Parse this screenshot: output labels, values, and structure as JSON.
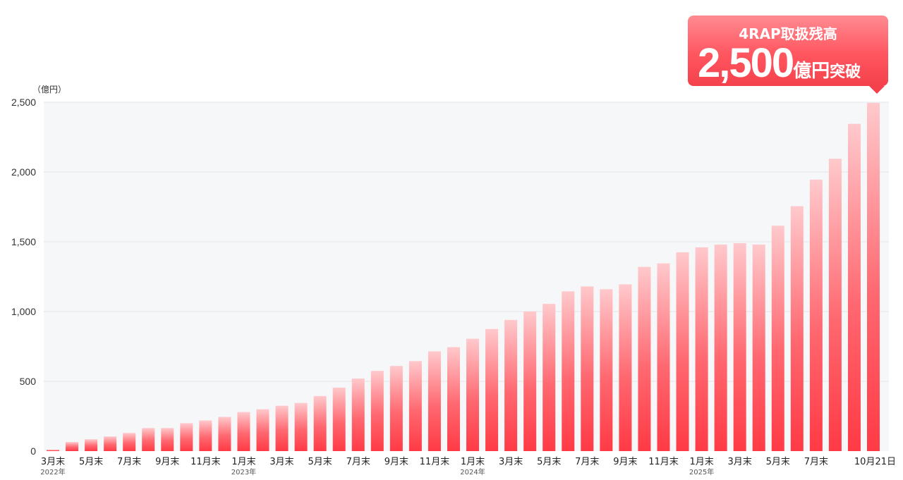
{
  "chart_data": {
    "type": "bar",
    "unit_label": "（億円）",
    "ylim": [
      0,
      2500
    ],
    "yticks": [
      0,
      500,
      1000,
      1500,
      2000,
      2500
    ],
    "ytick_labels": [
      "0",
      "500",
      "1,000",
      "1,500",
      "2,000",
      "2,500"
    ],
    "grid": true,
    "months": [
      "2022-03",
      "2022-04",
      "2022-05",
      "2022-06",
      "2022-07",
      "2022-08",
      "2022-09",
      "2022-10",
      "2022-11",
      "2022-12",
      "2023-01",
      "2023-02",
      "2023-03",
      "2023-04",
      "2023-05",
      "2023-06",
      "2023-07",
      "2023-08",
      "2023-09",
      "2023-10",
      "2023-11",
      "2023-12",
      "2024-01",
      "2024-02",
      "2024-03",
      "2024-04",
      "2024-05",
      "2024-06",
      "2024-07",
      "2024-08",
      "2024-09",
      "2024-10",
      "2024-11",
      "2024-12",
      "2025-01",
      "2025-02",
      "2025-03",
      "2025-04",
      "2025-05",
      "2025-06",
      "2025-07",
      "2025-08",
      "2025-09",
      "2025-10-21"
    ],
    "values": [
      10,
      65,
      85,
      105,
      130,
      165,
      165,
      200,
      220,
      245,
      280,
      300,
      325,
      345,
      395,
      455,
      520,
      575,
      610,
      645,
      715,
      745,
      805,
      875,
      940,
      1000,
      1055,
      1145,
      1180,
      1160,
      1195,
      1320,
      1345,
      1425,
      1460,
      1480,
      1490,
      1480,
      1615,
      1755,
      1945,
      2095,
      2345,
      2495
    ],
    "x_tick_labels": [
      {
        "index": 0,
        "label": "3月末",
        "year": "2022年"
      },
      {
        "index": 2,
        "label": "5月末"
      },
      {
        "index": 4,
        "label": "7月末"
      },
      {
        "index": 6,
        "label": "9月末"
      },
      {
        "index": 8,
        "label": "11月末"
      },
      {
        "index": 10,
        "label": "1月末",
        "year": "2023年"
      },
      {
        "index": 12,
        "label": "3月末"
      },
      {
        "index": 14,
        "label": "5月末"
      },
      {
        "index": 16,
        "label": "7月末"
      },
      {
        "index": 18,
        "label": "9月末"
      },
      {
        "index": 20,
        "label": "11月末"
      },
      {
        "index": 22,
        "label": "1月末",
        "year": "2024年"
      },
      {
        "index": 24,
        "label": "3月末"
      },
      {
        "index": 26,
        "label": "5月末"
      },
      {
        "index": 28,
        "label": "7月末"
      },
      {
        "index": 30,
        "label": "9月末"
      },
      {
        "index": 32,
        "label": "11月末"
      },
      {
        "index": 34,
        "label": "1月末",
        "year": "2025年"
      },
      {
        "index": 36,
        "label": "3月末"
      },
      {
        "index": 38,
        "label": "5月末"
      },
      {
        "index": 40,
        "label": "7月末"
      },
      {
        "index": 43,
        "label": "10月21日"
      }
    ]
  },
  "callout": {
    "title": "4RAP取扱残高",
    "value": "2,500",
    "unit": "億円",
    "suffix": "突破"
  },
  "colors": {
    "bar_top": "#ffc9cc",
    "bar_bottom": "#ff3a45",
    "plot_background": "#f6f7f9",
    "gridline": "#e2e4e8"
  }
}
